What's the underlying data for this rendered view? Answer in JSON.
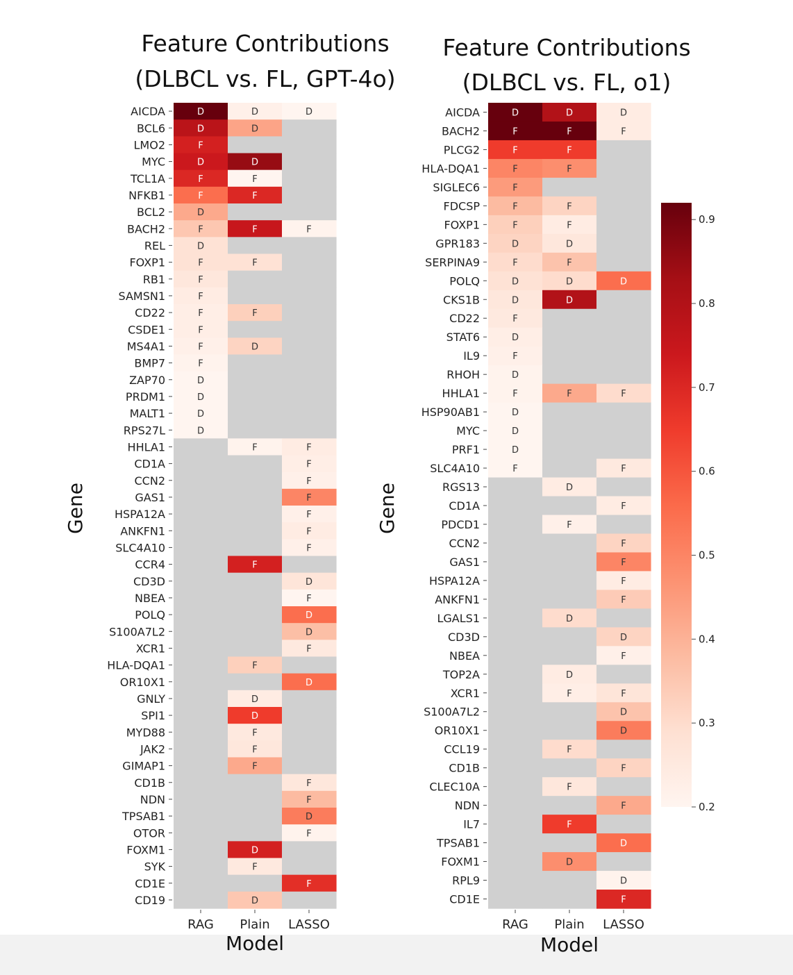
{
  "chart_data": [
    {
      "type": "heatmap",
      "title": "Feature Contributions\n(DLBCL vs. FL, GPT-4o)",
      "xlabel": "Model",
      "ylabel": "Gene",
      "columns": [
        "RAG",
        "Plain",
        "LASSO"
      ],
      "rows": [
        "AICDA",
        "BCL6",
        "LMO2",
        "MYC",
        "TCL1A",
        "NFKB1",
        "BCL2",
        "BACH2",
        "REL",
        "FOXP1",
        "RB1",
        "SAMSN1",
        "CD22",
        "CSDE1",
        "MS4A1",
        "BMP7",
        "ZAP70",
        "PRDM1",
        "MALT1",
        "RPS27L",
        "HHLA1",
        "CD1A",
        "CCN2",
        "GAS1",
        "HSPA12A",
        "ANKFN1",
        "SLC4A10",
        "CCR4",
        "CD3D",
        "NBEA",
        "POLQ",
        "S100A7L2",
        "XCR1",
        "HLA-DQA1",
        "OR10X1",
        "GNLY",
        "SPI1",
        "MYD88",
        "JAK2",
        "GIMAP1",
        "CD1B",
        "NDN",
        "TPSAB1",
        "OTOR",
        "FOXM1",
        "SYK",
        "CD1E",
        "CD19"
      ],
      "values": [
        [
          0.92,
          0.22,
          0.2
        ],
        [
          0.78,
          0.43,
          null
        ],
        [
          0.72,
          null,
          null
        ],
        [
          0.74,
          0.85,
          null
        ],
        [
          0.7,
          0.2,
          null
        ],
        [
          0.55,
          0.7,
          null
        ],
        [
          0.42,
          null,
          null
        ],
        [
          0.35,
          0.75,
          0.21
        ],
        [
          0.28,
          null,
          null
        ],
        [
          0.28,
          0.28,
          null
        ],
        [
          0.26,
          null,
          null
        ],
        [
          0.24,
          null,
          null
        ],
        [
          0.23,
          0.33,
          null
        ],
        [
          0.23,
          null,
          null
        ],
        [
          0.22,
          0.32,
          null
        ],
        [
          0.21,
          null,
          null
        ],
        [
          0.2,
          null,
          null
        ],
        [
          0.2,
          null,
          null
        ],
        [
          0.2,
          null,
          null
        ],
        [
          0.2,
          null,
          null
        ],
        [
          null,
          0.21,
          0.24
        ],
        [
          null,
          null,
          0.23
        ],
        [
          null,
          null,
          0.22
        ],
        [
          null,
          null,
          0.5
        ],
        [
          null,
          null,
          0.22
        ],
        [
          null,
          null,
          0.24
        ],
        [
          null,
          null,
          0.22
        ],
        [
          null,
          0.72,
          null
        ],
        [
          null,
          null,
          0.27
        ],
        [
          null,
          null,
          0.2
        ],
        [
          null,
          null,
          0.55
        ],
        [
          null,
          null,
          0.37
        ],
        [
          null,
          null,
          0.25
        ],
        [
          null,
          0.33,
          null
        ],
        [
          null,
          null,
          0.55
        ],
        [
          null,
          0.24,
          null
        ],
        [
          null,
          0.65,
          null
        ],
        [
          null,
          0.25,
          null
        ],
        [
          null,
          0.26,
          null
        ],
        [
          null,
          0.42,
          null
        ],
        [
          null,
          null,
          0.26
        ],
        [
          null,
          null,
          0.38
        ],
        [
          null,
          null,
          0.52
        ],
        [
          null,
          null,
          0.21
        ],
        [
          null,
          0.72,
          null
        ],
        [
          null,
          0.25,
          null
        ],
        [
          null,
          null,
          0.68
        ],
        [
          null,
          0.35,
          null
        ]
      ],
      "labels": [
        [
          "D",
          "D",
          "D"
        ],
        [
          "D",
          "D",
          ""
        ],
        [
          "F",
          "",
          ""
        ],
        [
          "D",
          "D",
          ""
        ],
        [
          "F",
          "F",
          ""
        ],
        [
          "F",
          "F",
          ""
        ],
        [
          "D",
          "",
          ""
        ],
        [
          "F",
          "F",
          "F"
        ],
        [
          "D",
          "",
          ""
        ],
        [
          "F",
          "F",
          ""
        ],
        [
          "F",
          "",
          ""
        ],
        [
          "F",
          "",
          ""
        ],
        [
          "F",
          "F",
          ""
        ],
        [
          "F",
          "",
          ""
        ],
        [
          "F",
          "D",
          ""
        ],
        [
          "F",
          "",
          ""
        ],
        [
          "D",
          "",
          ""
        ],
        [
          "D",
          "",
          ""
        ],
        [
          "D",
          "",
          ""
        ],
        [
          "D",
          "",
          ""
        ],
        [
          "",
          "F",
          "F"
        ],
        [
          "",
          "",
          "F"
        ],
        [
          "",
          "",
          "F"
        ],
        [
          "",
          "",
          "F"
        ],
        [
          "",
          "",
          "F"
        ],
        [
          "",
          "",
          "F"
        ],
        [
          "",
          "",
          "F"
        ],
        [
          "",
          "F",
          ""
        ],
        [
          "",
          "",
          "D"
        ],
        [
          "",
          "",
          "F"
        ],
        [
          "",
          "",
          "D"
        ],
        [
          "",
          "",
          "D"
        ],
        [
          "",
          "",
          "F"
        ],
        [
          "",
          "F",
          ""
        ],
        [
          "",
          "",
          "D"
        ],
        [
          "",
          "D",
          ""
        ],
        [
          "",
          "D",
          ""
        ],
        [
          "",
          "F",
          ""
        ],
        [
          "",
          "F",
          ""
        ],
        [
          "",
          "F",
          ""
        ],
        [
          "",
          "",
          "F"
        ],
        [
          "",
          "",
          "F"
        ],
        [
          "",
          "",
          "D"
        ],
        [
          "",
          "",
          "F"
        ],
        [
          "",
          "D",
          ""
        ],
        [
          "",
          "F",
          ""
        ],
        [
          "",
          "",
          "F"
        ],
        [
          "",
          "D",
          ""
        ]
      ]
    },
    {
      "type": "heatmap",
      "title": "Feature Contributions\n(DLBCL vs. FL, o1)",
      "xlabel": "Model",
      "ylabel": "Gene",
      "columns": [
        "RAG",
        "Plain",
        "LASSO"
      ],
      "rows": [
        "AICDA",
        "BACH2",
        "PLCG2",
        "HLA-DQA1",
        "SIGLEC6",
        "FDCSP",
        "FOXP1",
        "GPR183",
        "SERPINA9",
        "POLQ",
        "CKS1B",
        "CD22",
        "STAT6",
        "IL9",
        "RHOH",
        "HHLA1",
        "HSP90AB1",
        "MYC",
        "PRF1",
        "SLC4A10",
        "RGS13",
        "CD1A",
        "PDCD1",
        "CCN2",
        "GAS1",
        "HSPA12A",
        "ANKFN1",
        "LGALS1",
        "CD3D",
        "NBEA",
        "TOP2A",
        "XCR1",
        "S100A7L2",
        "OR10X1",
        "CCL19",
        "CD1B",
        "CLEC10A",
        "NDN",
        "IL7",
        "TPSAB1",
        "FOXM1",
        "RPL9",
        "CD1E"
      ],
      "values": [
        [
          0.92,
          0.8,
          0.24
        ],
        [
          0.95,
          0.95,
          0.24
        ],
        [
          0.65,
          0.65,
          null
        ],
        [
          0.5,
          0.48,
          null
        ],
        [
          0.45,
          null,
          null
        ],
        [
          0.38,
          0.32,
          null
        ],
        [
          0.33,
          0.24,
          null
        ],
        [
          0.32,
          0.26,
          null
        ],
        [
          0.3,
          0.36,
          null
        ],
        [
          0.28,
          0.3,
          0.55
        ],
        [
          0.26,
          0.8,
          null
        ],
        [
          0.25,
          null,
          null
        ],
        [
          0.23,
          null,
          null
        ],
        [
          0.22,
          null,
          null
        ],
        [
          0.21,
          null,
          null
        ],
        [
          0.21,
          0.42,
          0.3
        ],
        [
          0.2,
          null,
          null
        ],
        [
          0.2,
          null,
          null
        ],
        [
          0.2,
          null,
          null
        ],
        [
          0.2,
          null,
          0.25
        ],
        [
          null,
          0.24,
          null
        ],
        [
          null,
          null,
          0.24
        ],
        [
          null,
          0.22,
          null
        ],
        [
          null,
          null,
          0.32
        ],
        [
          null,
          null,
          0.5
        ],
        [
          null,
          null,
          0.24
        ],
        [
          null,
          null,
          0.34
        ],
        [
          null,
          0.3,
          null
        ],
        [
          null,
          null,
          0.32
        ],
        [
          null,
          null,
          0.22
        ],
        [
          null,
          0.24,
          null
        ],
        [
          null,
          0.23,
          0.27
        ],
        [
          null,
          null,
          0.36
        ],
        [
          null,
          null,
          0.52
        ],
        [
          null,
          0.3,
          null
        ],
        [
          null,
          null,
          0.32
        ],
        [
          null,
          0.26,
          null
        ],
        [
          null,
          null,
          0.42
        ],
        [
          null,
          0.65,
          null
        ],
        [
          null,
          null,
          0.55
        ],
        [
          null,
          0.48,
          null
        ],
        [
          null,
          null,
          0.21
        ],
        [
          null,
          null,
          0.7
        ]
      ],
      "labels": [
        [
          "D",
          "D",
          "D"
        ],
        [
          "F",
          "F",
          "F"
        ],
        [
          "F",
          "F",
          ""
        ],
        [
          "F",
          "F",
          ""
        ],
        [
          "F",
          "",
          ""
        ],
        [
          "F",
          "F",
          ""
        ],
        [
          "F",
          "F",
          ""
        ],
        [
          "D",
          "D",
          ""
        ],
        [
          "F",
          "F",
          ""
        ],
        [
          "D",
          "D",
          "D"
        ],
        [
          "D",
          "D",
          ""
        ],
        [
          "F",
          "",
          ""
        ],
        [
          "D",
          "",
          ""
        ],
        [
          "F",
          "",
          ""
        ],
        [
          "D",
          "",
          ""
        ],
        [
          "F",
          "F",
          "F"
        ],
        [
          "D",
          "",
          ""
        ],
        [
          "D",
          "",
          ""
        ],
        [
          "D",
          "",
          ""
        ],
        [
          "F",
          "",
          "F"
        ],
        [
          "",
          "D",
          ""
        ],
        [
          "",
          "",
          "F"
        ],
        [
          "",
          "F",
          ""
        ],
        [
          "",
          "",
          "F"
        ],
        [
          "",
          "",
          "F"
        ],
        [
          "",
          "",
          "F"
        ],
        [
          "",
          "",
          "F"
        ],
        [
          "",
          "D",
          ""
        ],
        [
          "",
          "",
          "D"
        ],
        [
          "",
          "",
          "F"
        ],
        [
          "",
          "D",
          ""
        ],
        [
          "",
          "F",
          "F"
        ],
        [
          "",
          "",
          "D"
        ],
        [
          "",
          "",
          "D"
        ],
        [
          "",
          "F",
          ""
        ],
        [
          "",
          "",
          "F"
        ],
        [
          "",
          "F",
          ""
        ],
        [
          "",
          "",
          "F"
        ],
        [
          "",
          "F",
          ""
        ],
        [
          "",
          "",
          "D"
        ],
        [
          "",
          "D",
          ""
        ],
        [
          "",
          "",
          "D"
        ],
        [
          "",
          "",
          "F"
        ]
      ]
    }
  ],
  "colorbar": {
    "min": 0.2,
    "max": 0.92,
    "ticks": [
      "0.2",
      "0.3",
      "0.4",
      "0.5",
      "0.6",
      "0.7",
      "0.8",
      "0.9"
    ],
    "tick_values": [
      0.2,
      0.3,
      0.4,
      0.5,
      0.6,
      0.7,
      0.8,
      0.9
    ]
  },
  "colors": {
    "missing": "#d0d0d0",
    "low": "#fff5f0",
    "high": "#67000d"
  }
}
